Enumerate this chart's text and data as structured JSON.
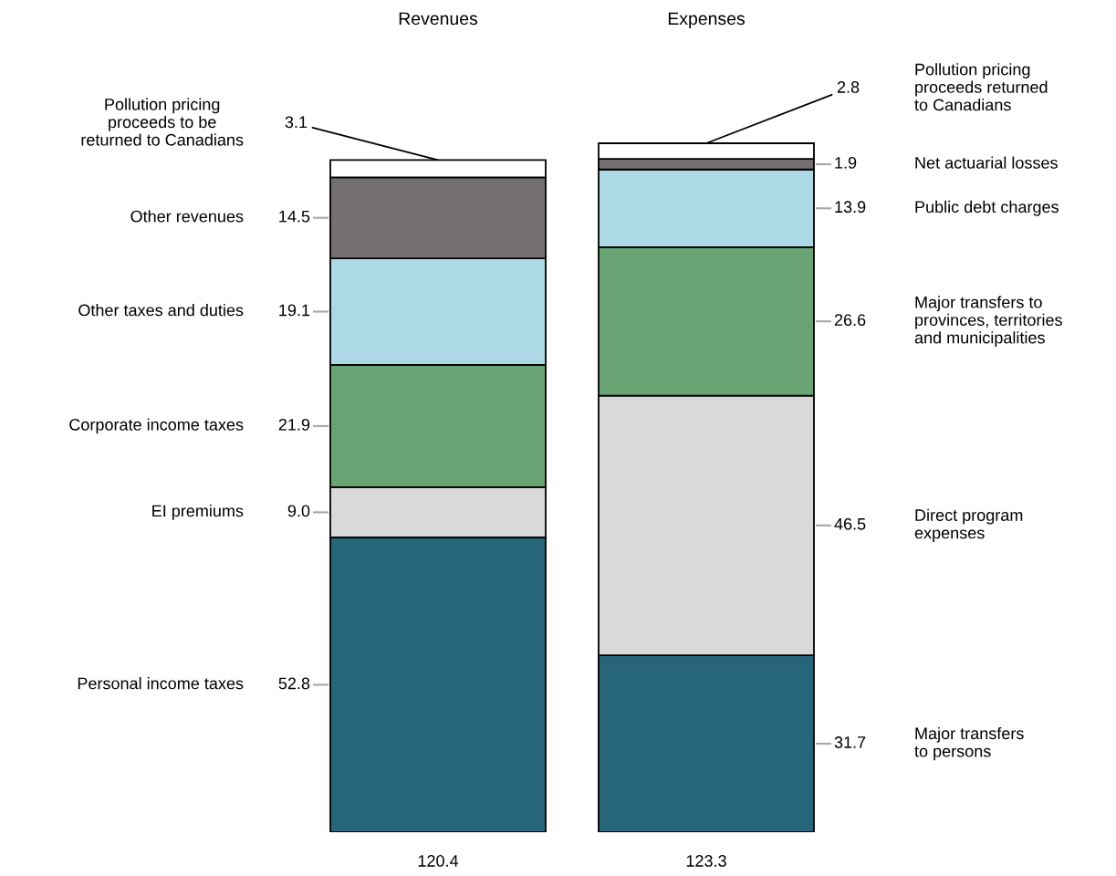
{
  "chart_data": {
    "type": "bar",
    "stacked": true,
    "categories": [
      "Revenues",
      "Expenses"
    ],
    "series": [
      {
        "color": "#27657a",
        "values": [
          52.8,
          31.7
        ],
        "value_labels": [
          "52.8",
          "31.7"
        ]
      },
      {
        "color": "#d9d9d9",
        "values": [
          9.0,
          46.5
        ],
        "value_labels": [
          "9.0",
          "46.5"
        ]
      },
      {
        "color": "#6aa374",
        "values": [
          21.9,
          26.6
        ],
        "value_labels": [
          "21.9",
          "26.6"
        ]
      },
      {
        "color": "#add8e6",
        "values": [
          19.1,
          13.9
        ],
        "value_labels": [
          "19.1",
          "13.9"
        ]
      },
      {
        "color": "#747070",
        "values": [
          14.5,
          1.9
        ],
        "value_labels": [
          "14.5",
          "1.9"
        ]
      },
      {
        "color": "#ffffff",
        "values": [
          3.1,
          2.8
        ],
        "value_labels": [
          "3.1",
          "2.8"
        ]
      }
    ],
    "totals": [
      "120.4",
      "123.3"
    ],
    "annotations": [
      "Personal income taxes",
      "EI premiums",
      "Corporate income taxes",
      "Other taxes and duties",
      "Other revenues",
      "Pollution pricing\nproceeds to be\nreturned to Canadians",
      "Major transfers\nto persons",
      "Direct program\nexpenses",
      "Major transfers to\nprovinces, territories\nand municipalities",
      "Public debt charges",
      "Net actuarial losses",
      "Pollution pricing\nproceeds returned\nto Canadians"
    ]
  }
}
